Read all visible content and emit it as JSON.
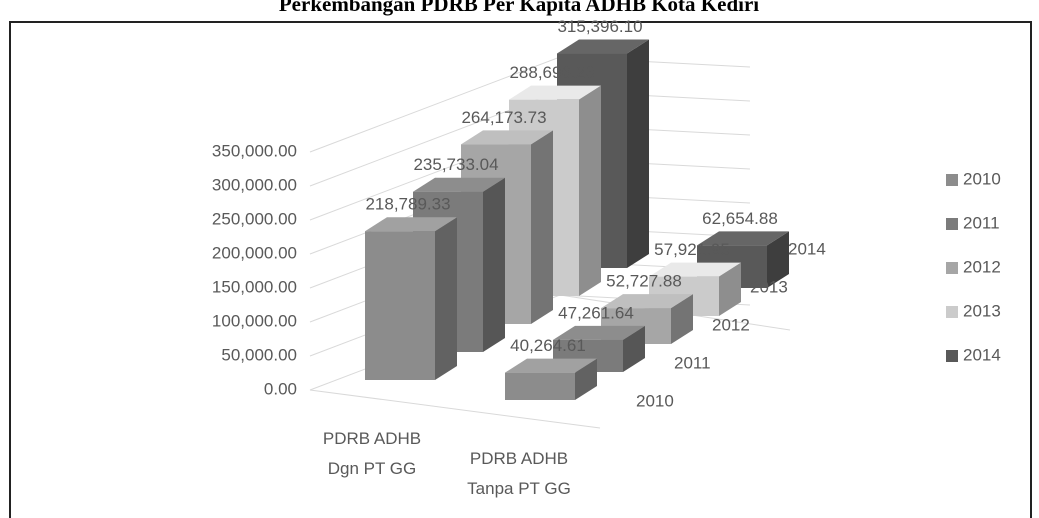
{
  "chart_data": {
    "type": "bar3d",
    "title": "Perkembangan PDRB Per Kapita ADHB Kota Kediri",
    "categories": [
      "PDRB ADHB Dgn PT GG",
      "PDRB ADHB Tanpa PT GG"
    ],
    "series": [
      {
        "name": "2010",
        "color": "#8c8c8c",
        "values": [
          218789.33,
          40264.61
        ],
        "value_labels": [
          "218,789.33",
          "40,264.61"
        ]
      },
      {
        "name": "2011",
        "color": "#7b7b7b",
        "values": [
          235733.04,
          47261.64
        ],
        "value_labels": [
          "235,733.04",
          "47,261.64"
        ]
      },
      {
        "name": "2012",
        "color": "#a6a6a6",
        "values": [
          264173.73,
          52727.88
        ],
        "value_labels": [
          "264,173.73",
          "52,727.88"
        ]
      },
      {
        "name": "2013",
        "color": "#cbcbcb",
        "values": [
          288696.23,
          57921.95
        ],
        "value_labels": [
          "288,696.23",
          "57,921.95"
        ]
      },
      {
        "name": "2014",
        "color": "#595959",
        "values": [
          315396.1,
          62654.88
        ],
        "value_labels": [
          "315,396.10",
          "62,654.88"
        ]
      }
    ],
    "ylim": [
      0,
      350000
    ],
    "yticks": [
      {
        "value": 0,
        "label": "0.00"
      },
      {
        "value": 50000,
        "label": "50,000.00"
      },
      {
        "value": 100000,
        "label": "100,000.00"
      },
      {
        "value": 150000,
        "label": "150,000.00"
      },
      {
        "value": 200000,
        "label": "200,000.00"
      },
      {
        "value": 250000,
        "label": "250,000.00"
      },
      {
        "value": 300000,
        "label": "300,000.00"
      },
      {
        "value": 350000,
        "label": "350,000.00"
      }
    ],
    "grid": true,
    "legend": "right"
  }
}
